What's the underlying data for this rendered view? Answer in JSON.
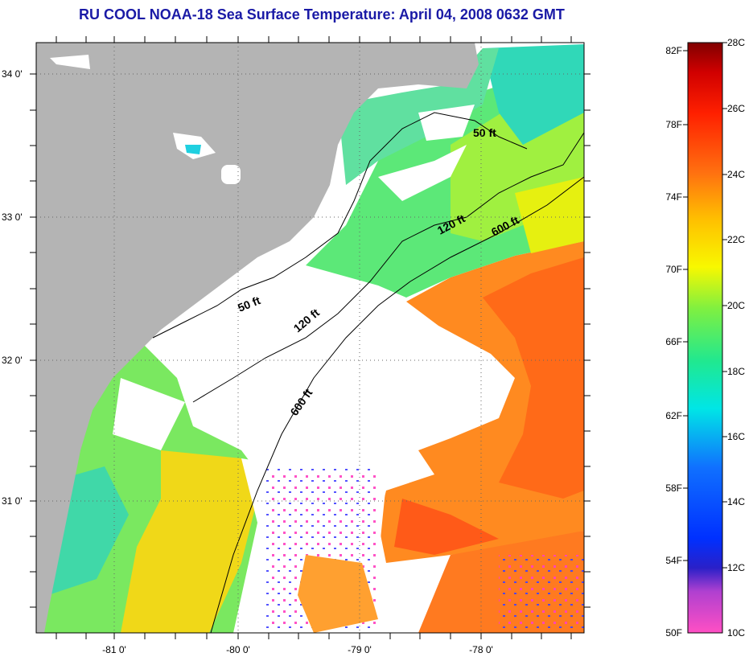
{
  "title": "RU COOL  NOAA-18  Sea Surface Temperature:  April 04, 2008 0632 GMT",
  "axes": {
    "lat_labels": [
      "34 0'",
      "33 0'",
      "32 0'",
      "31 0'"
    ],
    "lon_labels": [
      "-81 0'",
      "-80 0'",
      "-79 0'",
      "-78 0'"
    ]
  },
  "contours": {
    "nearshore": [
      "50 ft",
      "50 ft"
    ],
    "mid": [
      "120 ft",
      "120 ft"
    ],
    "shelf_break": [
      "600 ft",
      "600 ft"
    ]
  },
  "colorbar": {
    "fahrenheit": [
      "82F",
      "78F",
      "74F",
      "70F",
      "66F",
      "62F",
      "58F",
      "54F",
      "50F"
    ],
    "celsius": [
      "28C",
      "26C",
      "24C",
      "22C",
      "20C",
      "18C",
      "16C",
      "14C",
      "12C",
      "10C"
    ]
  },
  "colors": {
    "land": "#b4b4b4",
    "cloud": "#ffffff",
    "title": "#1a1aa6"
  }
}
